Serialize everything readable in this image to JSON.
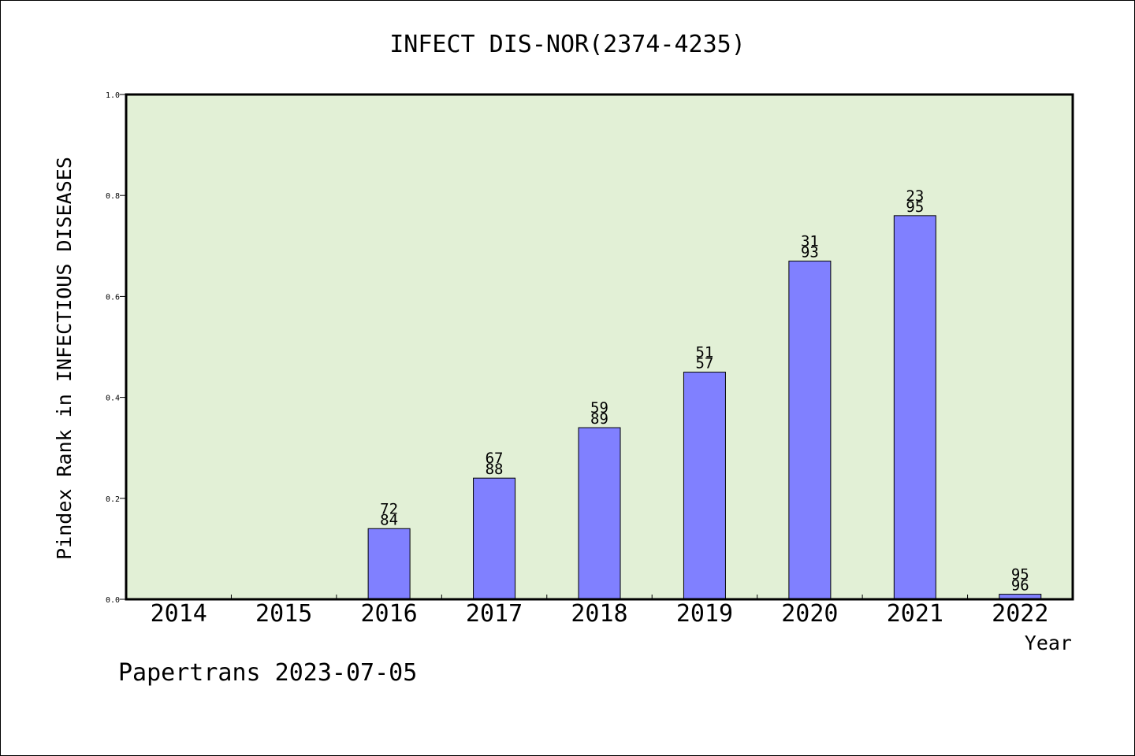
{
  "chart_data": {
    "type": "bar",
    "title": "INFECT DIS-NOR(2374-4235)",
    "xlabel": "Year",
    "ylabel": "Pindex Rank in INFECTIOUS DISEASES",
    "ylim": [
      0,
      1.0
    ],
    "y_ticks": [
      "0.0",
      "0.2",
      "0.4",
      "0.6",
      "0.8",
      "1.0"
    ],
    "categories": [
      "2014",
      "2015",
      "2016",
      "2017",
      "2018",
      "2019",
      "2020",
      "2021",
      "2022"
    ],
    "values": [
      null,
      null,
      0.14,
      0.24,
      0.34,
      0.45,
      0.67,
      0.76,
      0.01
    ],
    "labels_top": [
      "",
      "",
      "72",
      "67",
      "59",
      "51",
      "31",
      "23",
      "95"
    ],
    "labels_bottom": [
      "",
      "",
      "84",
      "88",
      "89",
      "57",
      "93",
      "95",
      "96"
    ],
    "grid": false,
    "colors": {
      "plot_background": "#e2f0d6",
      "bar_fill": "#8080ff",
      "bar_stroke": "#000000"
    }
  },
  "footer": {
    "credit": "Papertrans 2023-07-05"
  }
}
